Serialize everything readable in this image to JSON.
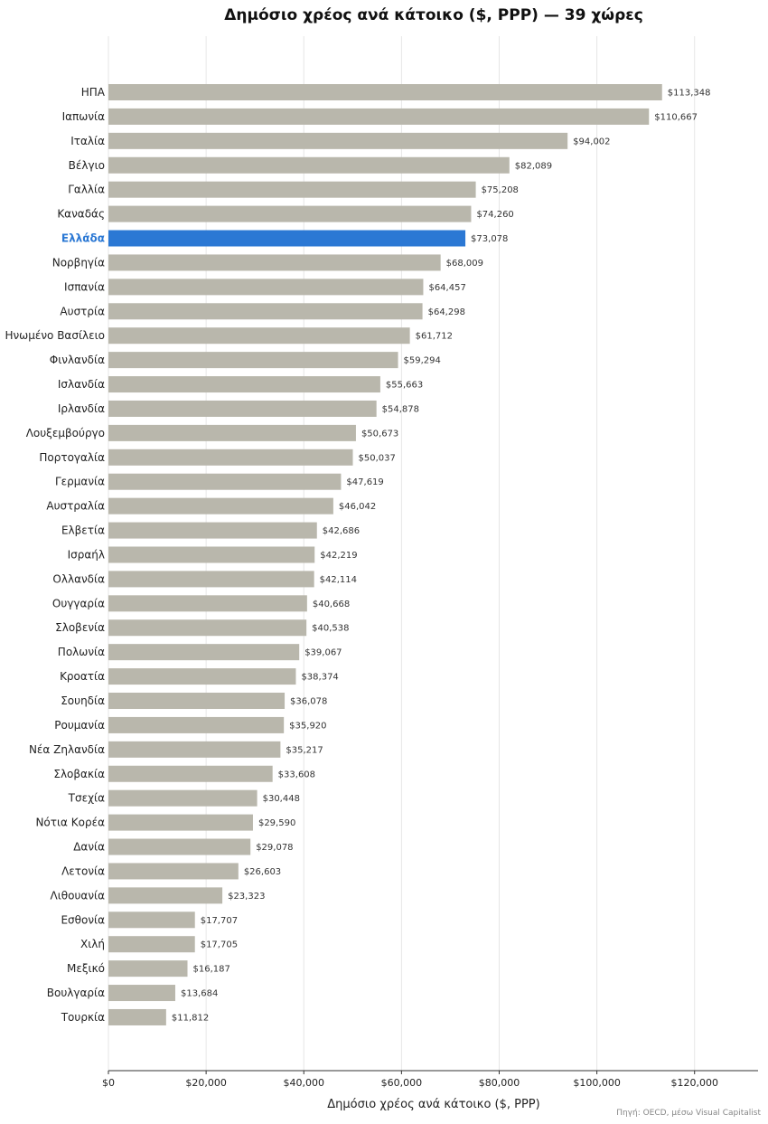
{
  "chart_data": {
    "type": "bar",
    "orientation": "horizontal",
    "title": "Δημόσιο χρέος ανά κάτοικο ($, PPP) — 39 χώρες",
    "xlabel": "Δημόσιο χρέος ανά κάτοικο ($, PPP)",
    "source": "Πηγή: OECD, μέσω Visual Capitalist",
    "xlim": [
      0,
      133000
    ],
    "xticks": [
      0,
      20000,
      40000,
      60000,
      80000,
      100000,
      120000
    ],
    "xtick_labels": [
      "$0",
      "$20,000",
      "$40,000",
      "$60,000",
      "$80,000",
      "$100,000",
      "$120,000"
    ],
    "grid": "vertical",
    "highlight": "Ελλάδα",
    "colors": {
      "bar": "#b9b7ac",
      "highlight": "#2b78d4"
    },
    "categories": [
      "ΗΠΑ",
      "Ιαπωνία",
      "Ιταλία",
      "Βέλγιο",
      "Γαλλία",
      "Καναδάς",
      "Ελλάδα",
      "Νορβηγία",
      "Ισπανία",
      "Αυστρία",
      "Ηνωμένο Βασίλειο",
      "Φινλανδία",
      "Ισλανδία",
      "Ιρλανδία",
      "Λουξεμβούργο",
      "Πορτογαλία",
      "Γερμανία",
      "Αυστραλία",
      "Ελβετία",
      "Ισραήλ",
      "Ολλανδία",
      "Ουγγαρία",
      "Σλοβενία",
      "Πολωνία",
      "Κροατία",
      "Σουηδία",
      "Ρουμανία",
      "Νέα Ζηλανδία",
      "Σλοβακία",
      "Τσεχία",
      "Νότια Κορέα",
      "Δανία",
      "Λετονία",
      "Λιθουανία",
      "Εσθονία",
      "Χιλή",
      "Μεξικό",
      "Βουλγαρία",
      "Τουρκία"
    ],
    "values": [
      113348,
      110667,
      94002,
      82089,
      75208,
      74260,
      73078,
      68009,
      64457,
      64298,
      61712,
      59294,
      55663,
      54878,
      50673,
      50037,
      47619,
      46042,
      42686,
      42219,
      42114,
      40668,
      40538,
      39067,
      38374,
      36078,
      35920,
      35217,
      33608,
      30448,
      29590,
      29078,
      26603,
      23323,
      17707,
      17705,
      16187,
      13684,
      11812
    ],
    "value_labels": [
      "$113,348",
      "$110,667",
      "$94,002",
      "$82,089",
      "$75,208",
      "$74,260",
      "$73,078",
      "$68,009",
      "$64,457",
      "$64,298",
      "$61,712",
      "$59,294",
      "$55,663",
      "$54,878",
      "$50,673",
      "$50,037",
      "$47,619",
      "$46,042",
      "$42,686",
      "$42,219",
      "$42,114",
      "$40,668",
      "$40,538",
      "$39,067",
      "$38,374",
      "$36,078",
      "$35,920",
      "$35,217",
      "$33,608",
      "$30,448",
      "$29,590",
      "$29,078",
      "$26,603",
      "$23,323",
      "$17,707",
      "$17,705",
      "$16,187",
      "$13,684",
      "$11,812"
    ]
  }
}
